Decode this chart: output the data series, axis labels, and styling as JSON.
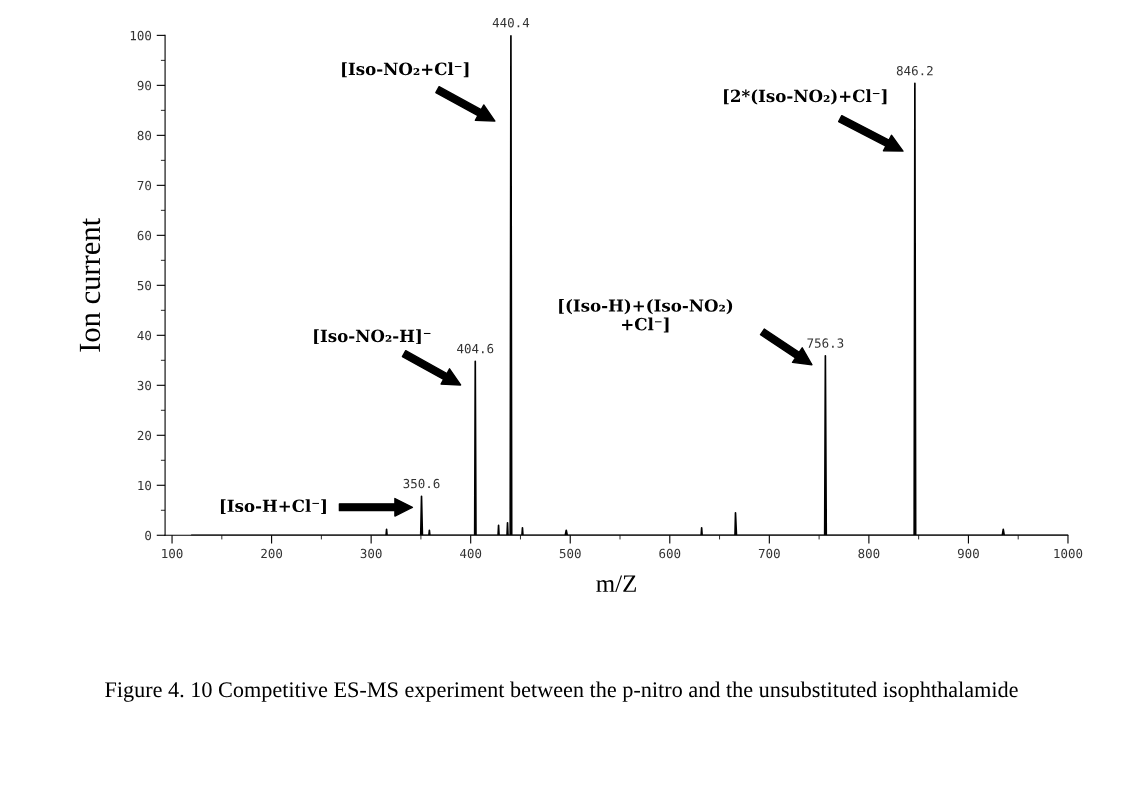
{
  "chart_data": {
    "type": "line",
    "xlabel": "m/Z",
    "ylabel": "Ion current",
    "series": [
      {
        "color": "#000000",
        "x": [
          120,
          310,
          315,
          315.5,
          316,
          349.8,
          350.6,
          351.5,
          358,
          358.5,
          359,
          404,
          404.6,
          405.3,
          427.5,
          428,
          428.5,
          436.5,
          437,
          437.5,
          439.7,
          440.4,
          441.2,
          451.5,
          452,
          452.5,
          495,
          496,
          497,
          631.5,
          632,
          632.5,
          665.5,
          666,
          667,
          755.6,
          756.3,
          757.2,
          845.5,
          846.2,
          847,
          934,
          935,
          936,
          1000
        ],
        "values": [
          0,
          0,
          0,
          1.2,
          0,
          0,
          7.8,
          0,
          0,
          1,
          0,
          0,
          34.8,
          0,
          0,
          2,
          0,
          0,
          2.5,
          0,
          0,
          100,
          0,
          0,
          1.5,
          0,
          0,
          1,
          0,
          0,
          1.5,
          0,
          0,
          4.5,
          0,
          0,
          35.9,
          0,
          0,
          90.4,
          0,
          0,
          1.2,
          0,
          0
        ]
      }
    ],
    "xlim": [
      93,
      1000
    ],
    "xticks": [
      100,
      200,
      300,
      400,
      500,
      600,
      700,
      800,
      900,
      1000
    ],
    "ylim": [
      0,
      100
    ],
    "yticks": [
      0,
      10,
      20,
      30,
      40,
      50,
      60,
      70,
      80,
      90,
      100
    ],
    "grid": false,
    "legend": false,
    "marker": "none",
    "line_style": "solid",
    "annotations": [
      {
        "text": "350.6",
        "x": 350.6,
        "y": 7.8
      },
      {
        "text": "404.6",
        "x": 404.6,
        "y": 34.8
      },
      {
        "text": "440.4",
        "x": 440.4,
        "y": 100
      },
      {
        "text": "756.3",
        "x": 756.3,
        "y": 35.9
      },
      {
        "text": "846.2",
        "x": 846.2,
        "y": 90.4
      },
      "[Iso-H+Cl⁻]",
      "[Iso-NO₂-H]⁻",
      "[Iso-NO₂+Cl⁻]",
      "[(Iso-H)+(Iso-NO₂)\n+Cl⁻]",
      "[2*(Iso-NO₂)+Cl⁻]",
      "Figure 4. 10 Competitive ES-MS experiment between the p-nitro and the unsubstituted isophthalamide"
    ]
  }
}
